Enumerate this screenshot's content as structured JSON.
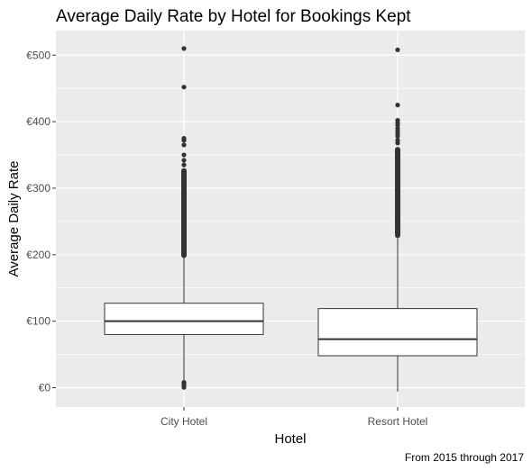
{
  "chart_data": {
    "type": "boxplot",
    "title": "Average Daily Rate by Hotel for Bookings Kept",
    "xlabel": "Hotel",
    "ylabel": "Average Daily Rate",
    "caption": "From 2015 through 2017",
    "ylim": [
      -30,
      530
    ],
    "y_ticks": [
      0,
      100,
      200,
      300,
      400,
      500
    ],
    "y_tick_labels": [
      "€0",
      "€100",
      "€200",
      "€300",
      "€400",
      "€500"
    ],
    "y_minor_ticks": [
      50,
      150,
      250,
      350,
      450
    ],
    "grid": true,
    "categories": [
      "City Hotel",
      "Resort Hotel"
    ],
    "boxes": [
      {
        "category": "City Hotel",
        "whisker_low": 0,
        "q1": 80,
        "median": 100,
        "q3": 127,
        "whisker_high": 195,
        "outlier_band": [
          195,
          330
        ],
        "outliers": [
          0.5,
          2,
          3.5,
          5,
          6.5,
          8,
          335,
          342,
          350,
          365,
          372,
          375,
          452,
          510
        ]
      },
      {
        "category": "Resort Hotel",
        "whisker_low": -6,
        "q1": 48,
        "median": 73,
        "q3": 119,
        "whisker_high": 225,
        "outlier_band": [
          225,
          362
        ],
        "outliers": [
          368,
          372,
          378,
          382,
          386,
          390,
          395,
          398,
          402,
          425,
          508
        ]
      }
    ],
    "colors": {
      "panel": "#ebebeb",
      "grid_major": "#ffffff",
      "box_fill": "#ffffff",
      "box_line": "#333333",
      "point": "#333333"
    }
  }
}
